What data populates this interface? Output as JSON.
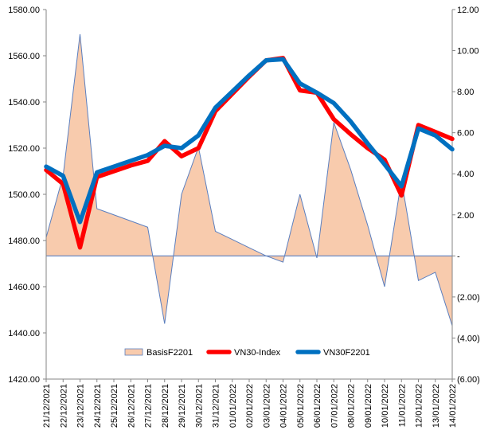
{
  "chart_data": {
    "type": "line",
    "x": [
      "21/12/2021",
      "22/12/2021",
      "23/12/2021",
      "24/12/2021",
      "25/12/2021",
      "26/12/2021",
      "27/12/2021",
      "28/12/2021",
      "29/12/2021",
      "30/12/2021",
      "31/12/2021",
      "01/01/2022",
      "02/01/2022",
      "03/01/2022",
      "04/01/2022",
      "05/01/2022",
      "06/01/2022",
      "07/01/2022",
      "08/01/2022",
      "09/01/2022",
      "10/01/2022",
      "11/01/2022",
      "12/01/2022",
      "13/01/2022",
      "14/01/2022"
    ],
    "y_left": {
      "min": 1420,
      "max": 1580,
      "step": 20,
      "tick_labels": [
        "1420.00",
        "1440.00",
        "1460.00",
        "1480.00",
        "1500.00",
        "1520.00",
        "1540.00",
        "1560.00",
        "1580.00"
      ]
    },
    "y_right": {
      "min": -6,
      "max": 12,
      "step": 2,
      "tick_labels": [
        "(6.00)",
        "(4.00)",
        "(2.00)",
        "-",
        "2.00",
        "4.00",
        "6.00",
        "8.00",
        "10.00",
        "12.00"
      ]
    },
    "grid": false,
    "legend_position": "bottom",
    "series": [
      {
        "name": "BasisF2201",
        "type": "area",
        "axis": "right",
        "color": "#f8cbad",
        "line_color": "#5b7fbf",
        "values": [
          0.9,
          3.9,
          10.8,
          2.3,
          2.0,
          1.7,
          1.4,
          -3.3,
          3.0,
          5.3,
          1.2,
          0.8,
          0.4,
          0.0,
          -0.3,
          3.0,
          -0.1,
          6.5,
          4.2,
          1.5,
          -1.5,
          3.7,
          -1.2,
          -0.8,
          -3.4
        ]
      },
      {
        "name": "VN30-Index",
        "type": "line",
        "axis": "left",
        "color": "#ff0000",
        "values": [
          1510.5,
          1504.5,
          1477.0,
          1507.5,
          1510.0,
          1512.5,
          1514.5,
          1523.0,
          1516.5,
          1520.0,
          1536.0,
          1543.5,
          1551.0,
          1558.0,
          1559.0,
          1545.0,
          1544.0,
          1532.5,
          1526.0,
          1520.0,
          1515.0,
          1499.5,
          1530.0,
          1527.0,
          1524.0
        ]
      },
      {
        "name": "VN30F2201",
        "type": "line",
        "axis": "left",
        "color": "#0070c0",
        "values": [
          1512.0,
          1508.0,
          1488.0,
          1509.5,
          1512.0,
          1514.5,
          1517.0,
          1521.0,
          1520.0,
          1525.5,
          1537.5,
          1544.5,
          1551.5,
          1558.0,
          1558.5,
          1548.0,
          1544.0,
          1539.5,
          1531.5,
          1522.0,
          1513.0,
          1503.5,
          1528.5,
          1525.5,
          1519.5
        ]
      }
    ]
  }
}
